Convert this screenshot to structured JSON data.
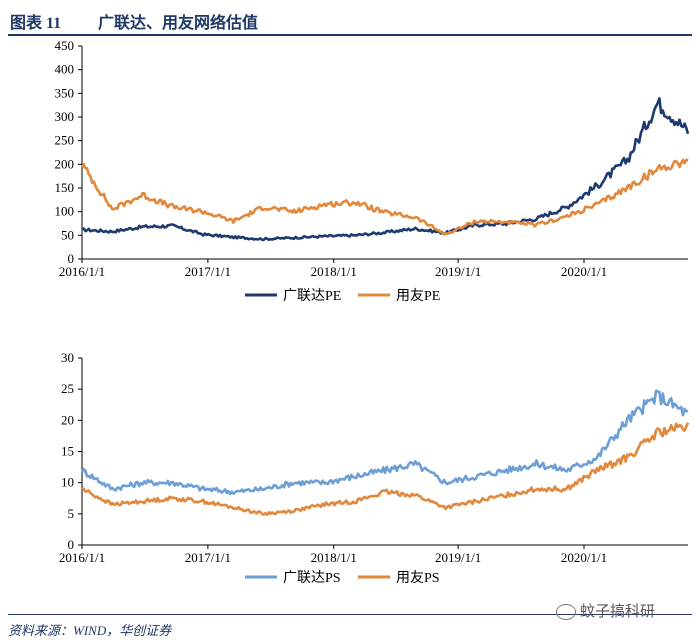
{
  "figure": {
    "number": "图表 11",
    "title": "广联达、用友网络估值",
    "source": "资料来源：WIND，华创证券",
    "watermark": "蚊子搞科研"
  },
  "colors": {
    "glodon_pe": "#1f3a6e",
    "yonyou": "#e2883c",
    "glodon_ps": "#6e9fd4"
  },
  "chart_data": [
    {
      "type": "line",
      "x": [
        "2016/1/1",
        "2016/4/1",
        "2016/7/1",
        "2016/10/1",
        "2017/1/1",
        "2017/4/1",
        "2017/7/1",
        "2017/10/1",
        "2018/1/1",
        "2018/4/1",
        "2018/7/1",
        "2018/10/1",
        "2019/1/1",
        "2019/4/1",
        "2019/7/1",
        "2019/10/1",
        "2020/1/1",
        "2020/4/1",
        "2020/7/1",
        "2020/10/1",
        "2020/12/31"
      ],
      "series": [
        {
          "name": "广联达PE",
          "color": "#1f3a6e",
          "values": [
            62,
            58,
            68,
            70,
            52,
            46,
            42,
            45,
            48,
            50,
            56,
            64,
            55,
            72,
            75,
            85,
            110,
            155,
            210,
            330,
            270
          ]
        },
        {
          "name": "用友PE",
          "color": "#e2883c",
          "values": [
            200,
            105,
            135,
            110,
            100,
            80,
            110,
            100,
            115,
            120,
            98,
            88,
            52,
            80,
            78,
            72,
            90,
            115,
            150,
            190,
            210
          ]
        }
      ],
      "xlabel": "",
      "ylabel": "",
      "ylim": [
        0,
        450
      ],
      "yticks": [
        "0",
        "50",
        "100",
        "150",
        "200",
        "250",
        "300",
        "350",
        "400",
        "450"
      ],
      "xticks": [
        "2016/1/1",
        "2017/1/1",
        "2018/1/1",
        "2019/1/1",
        "2020/1/1"
      ],
      "legend": "bottom"
    },
    {
      "type": "line",
      "x": [
        "2016/1/1",
        "2016/4/1",
        "2016/7/1",
        "2016/10/1",
        "2017/1/1",
        "2017/4/1",
        "2017/7/1",
        "2017/10/1",
        "2018/1/1",
        "2018/4/1",
        "2018/7/1",
        "2018/10/1",
        "2019/1/1",
        "2019/4/1",
        "2019/7/1",
        "2019/10/1",
        "2020/1/1",
        "2020/4/1",
        "2020/7/1",
        "2020/10/1",
        "2020/12/31"
      ],
      "series": [
        {
          "name": "广联达PS",
          "color": "#6e9fd4",
          "values": [
            12,
            9,
            10,
            10,
            9,
            8.5,
            9,
            10,
            10,
            11,
            12,
            13,
            10,
            11,
            12,
            13,
            12,
            14,
            20,
            24,
            21
          ]
        },
        {
          "name": "用友PS",
          "color": "#e2883c",
          "values": [
            9,
            6.5,
            7,
            7.5,
            7,
            6,
            5,
            5.5,
            6.5,
            7,
            8.5,
            8,
            6,
            7,
            8,
            9,
            9,
            12,
            14,
            18,
            19
          ]
        }
      ],
      "xlabel": "",
      "ylabel": "",
      "ylim": [
        0,
        30
      ],
      "yticks": [
        "0",
        "5",
        "10",
        "15",
        "20",
        "25",
        "30"
      ],
      "xticks": [
        "2016/1/1",
        "2017/1/1",
        "2018/1/1",
        "2019/1/1",
        "2020/1/1"
      ],
      "legend": "bottom"
    }
  ]
}
